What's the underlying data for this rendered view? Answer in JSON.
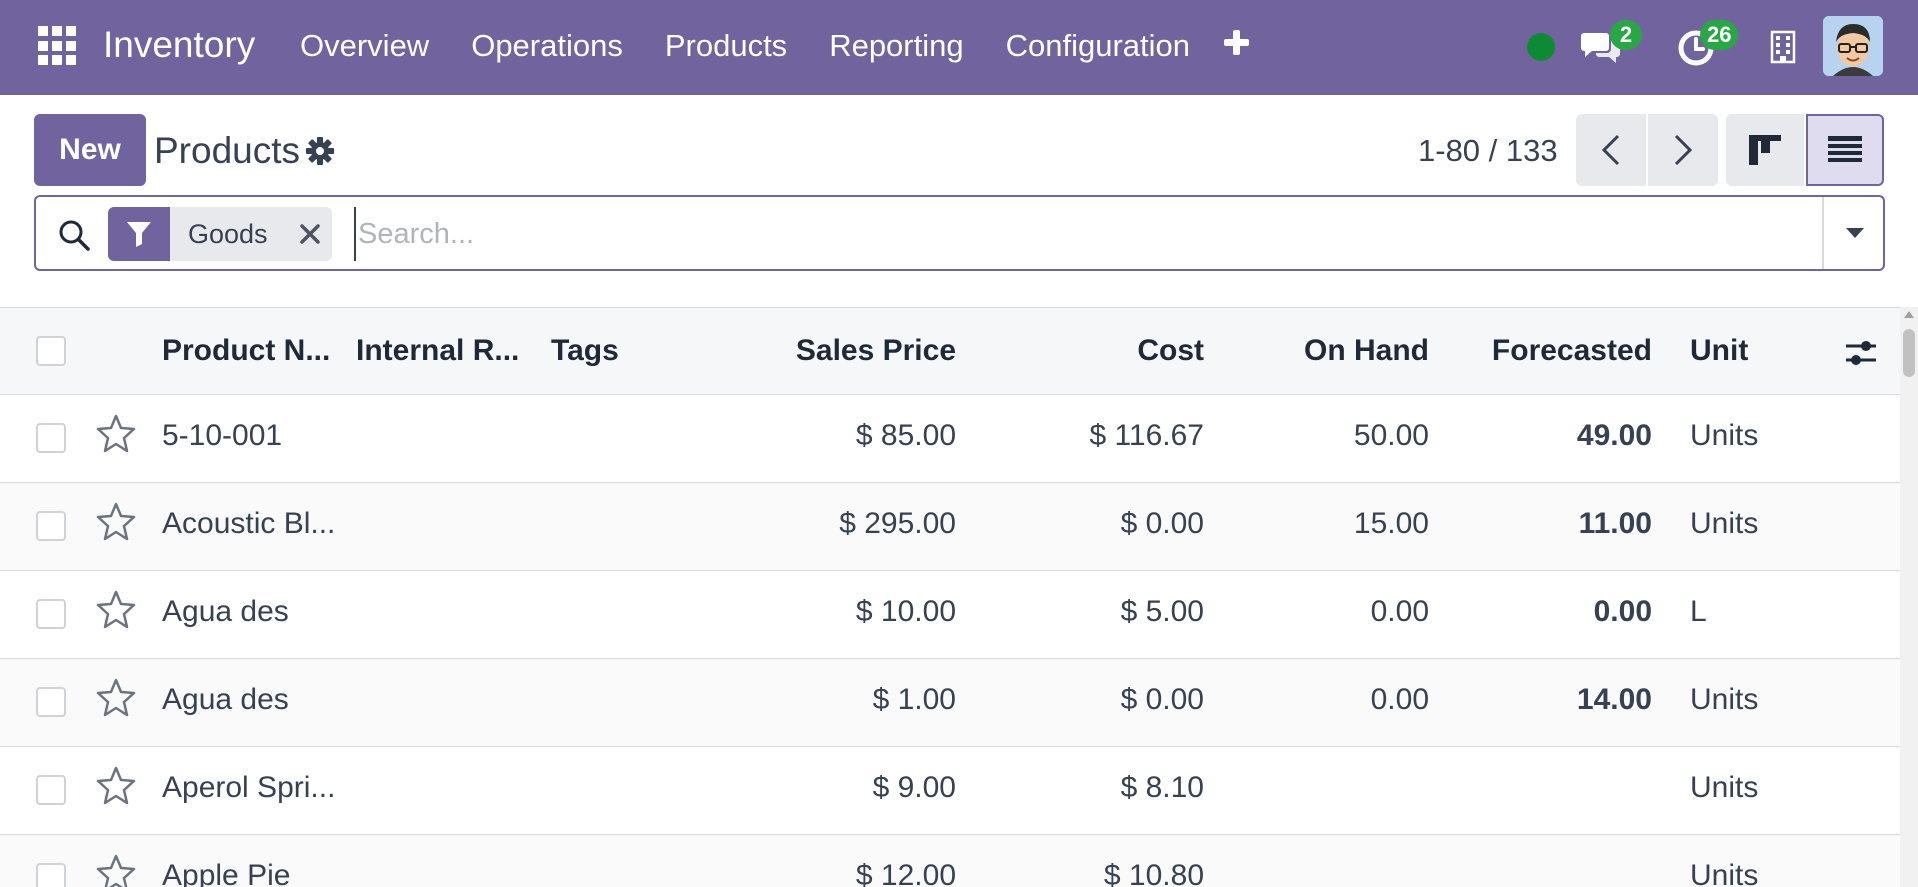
{
  "navbar": {
    "app_name": "Inventory",
    "menu": [
      "Overview",
      "Operations",
      "Products",
      "Reporting",
      "Configuration"
    ],
    "messages_count": "2",
    "activities_count": "26",
    "colors": {
      "bar": "#71639e",
      "online": "#0f8a34",
      "badge": "#28a745"
    }
  },
  "control_panel": {
    "new_label": "New",
    "title": "Products",
    "pager": "1-80 / 133"
  },
  "search": {
    "facet": "Goods",
    "placeholder": "Search..."
  },
  "table": {
    "headers": {
      "name": "Product N...",
      "internal_ref": "Internal R...",
      "tags": "Tags",
      "sales_price": "Sales Price",
      "cost": "Cost",
      "on_hand": "On Hand",
      "forecasted": "Forecasted",
      "unit": "Unit"
    },
    "rows": [
      {
        "name": "5-10-001",
        "sales_price": "$ 85.00",
        "cost": "$ 116.67",
        "on_hand": "50.00",
        "forecasted": "49.00",
        "unit": "Units"
      },
      {
        "name": "Acoustic Bl...",
        "sales_price": "$ 295.00",
        "cost": "$ 0.00",
        "on_hand": "15.00",
        "forecasted": "11.00",
        "unit": "Units"
      },
      {
        "name": "Agua des",
        "sales_price": "$ 10.00",
        "cost": "$ 5.00",
        "on_hand": "0.00",
        "forecasted": "0.00",
        "unit": "L"
      },
      {
        "name": "Agua des",
        "sales_price": "$ 1.00",
        "cost": "$ 0.00",
        "on_hand": "0.00",
        "forecasted": "14.00",
        "unit": "Units"
      },
      {
        "name": "Aperol Spri...",
        "sales_price": "$ 9.00",
        "cost": "$ 8.10",
        "on_hand": "",
        "forecasted": "",
        "unit": "Units"
      },
      {
        "name": "Apple Pie",
        "sales_price": "$ 12.00",
        "cost": "$ 10.80",
        "on_hand": "",
        "forecasted": "",
        "unit": "Units"
      }
    ]
  }
}
